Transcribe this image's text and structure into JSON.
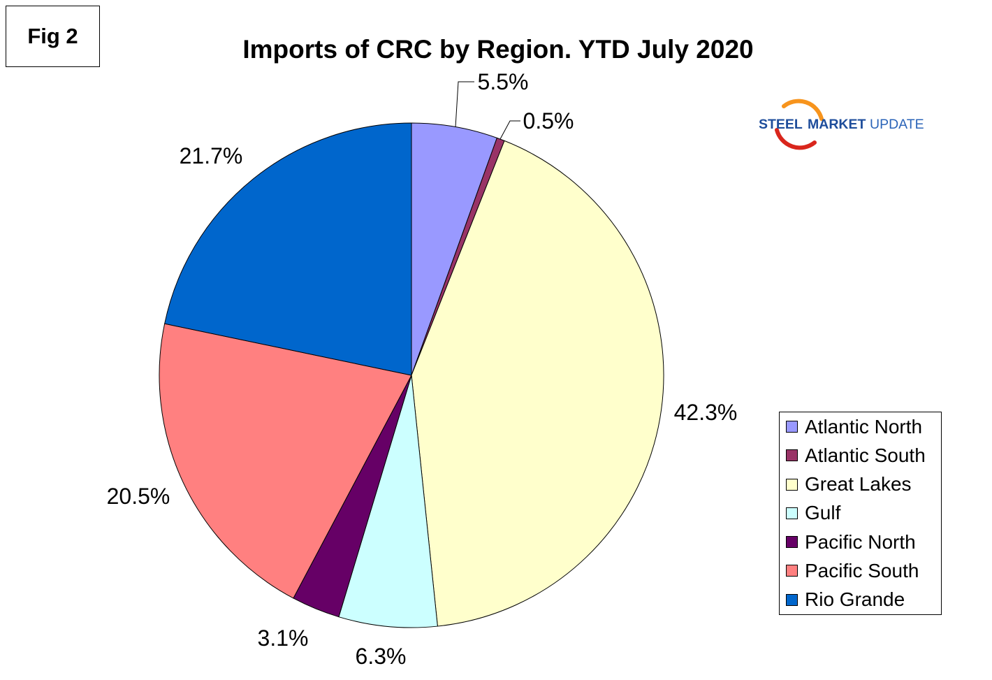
{
  "figure_label": "Fig 2",
  "logo": {
    "steel": "STEEL",
    "market": "MARKET",
    "update": "UPDATE",
    "colors": {
      "text_bold": "#1E4D9B",
      "text_light": "#2B64B8",
      "swoosh_top": "#F7941D",
      "swoosh_bottom": "#D9261C"
    }
  },
  "chart_data": {
    "type": "pie",
    "title": "Imports of CRC by Region. YTD July 2020",
    "categories": [
      "Atlantic North",
      "Atlantic South",
      "Great Lakes",
      "Gulf",
      "Pacific North",
      "Pacific South",
      "Rio Grande"
    ],
    "values": [
      5.5,
      0.5,
      42.3,
      6.3,
      3.1,
      20.5,
      21.7
    ],
    "value_labels": [
      "5.5%",
      "0.5%",
      "42.3%",
      "6.3%",
      "3.1%",
      "20.5%",
      "21.7%"
    ],
    "colors": [
      "#9999FF",
      "#993366",
      "#FFFFCC",
      "#CCFFFF",
      "#660066",
      "#FF8080",
      "#0066CC"
    ],
    "legend": {
      "position": "bottom-right"
    }
  }
}
